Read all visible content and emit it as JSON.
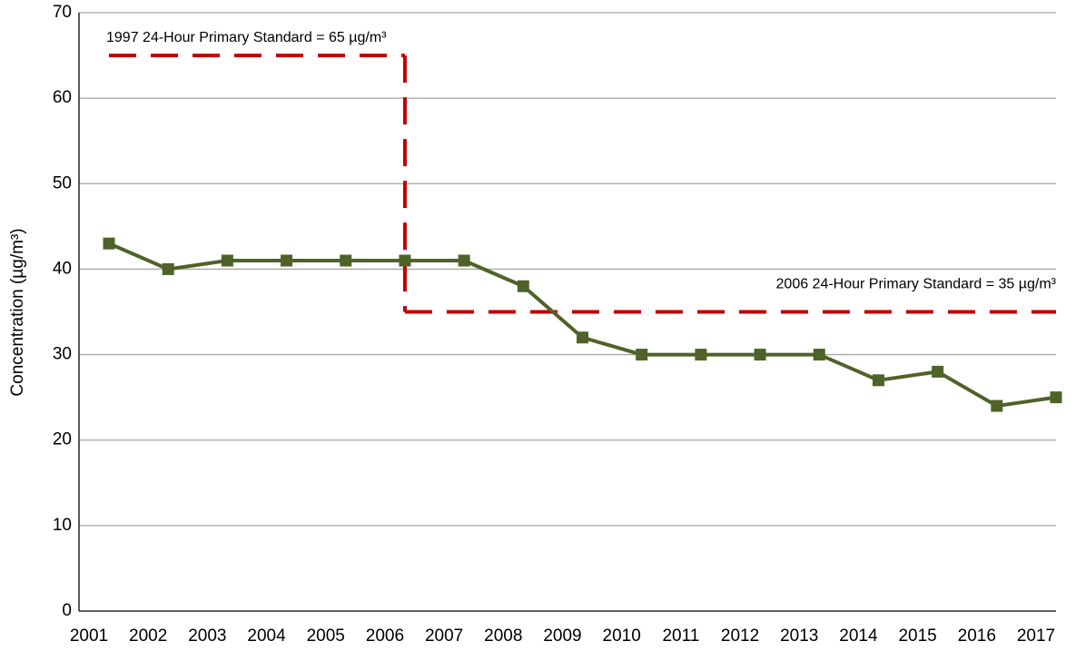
{
  "chart_data": {
    "type": "line",
    "y_label": "Concentration (µg/m³)",
    "categories": [
      "2001",
      "2002",
      "2003",
      "2004",
      "2005",
      "2006",
      "2007",
      "2008",
      "2009",
      "2010",
      "2011",
      "2012",
      "2013",
      "2014",
      "2015",
      "2016",
      "2017"
    ],
    "series": [
      {
        "color": "#4f6228",
        "values": [
          43,
          40,
          41,
          41,
          41,
          41,
          41,
          38,
          32,
          30,
          30,
          30,
          30,
          27,
          28,
          24,
          25
        ]
      }
    ],
    "standards": [
      {
        "label": "1997 24-Hour Primary Standard = 65 µg/m³",
        "value": 65,
        "from": "2001",
        "to": "2006",
        "color": "#c00000"
      },
      {
        "label": "2006 24-Hour Primary Standard = 35 µg/m³",
        "value": 35,
        "from": "2006",
        "to": "2017",
        "color": "#c00000"
      }
    ],
    "ylim": [
      0,
      70
    ],
    "yticks": [
      0,
      10,
      20,
      30,
      40,
      50,
      60,
      70
    ],
    "grid": true
  }
}
